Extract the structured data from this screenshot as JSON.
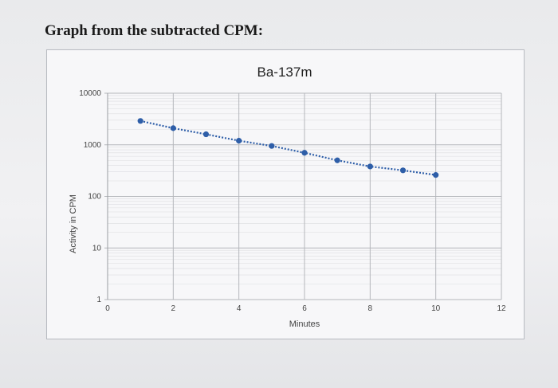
{
  "page": {
    "heading": "Graph from the subtracted CPM:"
  },
  "colors": {
    "series": "#2e5ea8",
    "grid": "#b5b7bc",
    "minor_grid": "#dcdde0",
    "frame": "#b9bcc2"
  },
  "chart_data": {
    "type": "scatter",
    "title": "Ba-137m",
    "xlabel": "Minutes",
    "ylabel": "Activity in CPM",
    "xlim": [
      0,
      12
    ],
    "ylim": [
      1,
      10000
    ],
    "yscale": "log",
    "x_ticks": [
      "0",
      "2",
      "4",
      "6",
      "8",
      "10",
      "12"
    ],
    "y_ticks": [
      "1",
      "10",
      "100",
      "1000",
      "10000"
    ],
    "grid": true,
    "legend": "none",
    "series": [
      {
        "line_style": "dotted",
        "x": [
          1,
          2,
          3,
          4,
          5,
          6,
          7,
          8,
          9,
          10
        ],
        "y": [
          2900,
          2100,
          1600,
          1200,
          950,
          700,
          500,
          380,
          320,
          260
        ]
      }
    ]
  }
}
